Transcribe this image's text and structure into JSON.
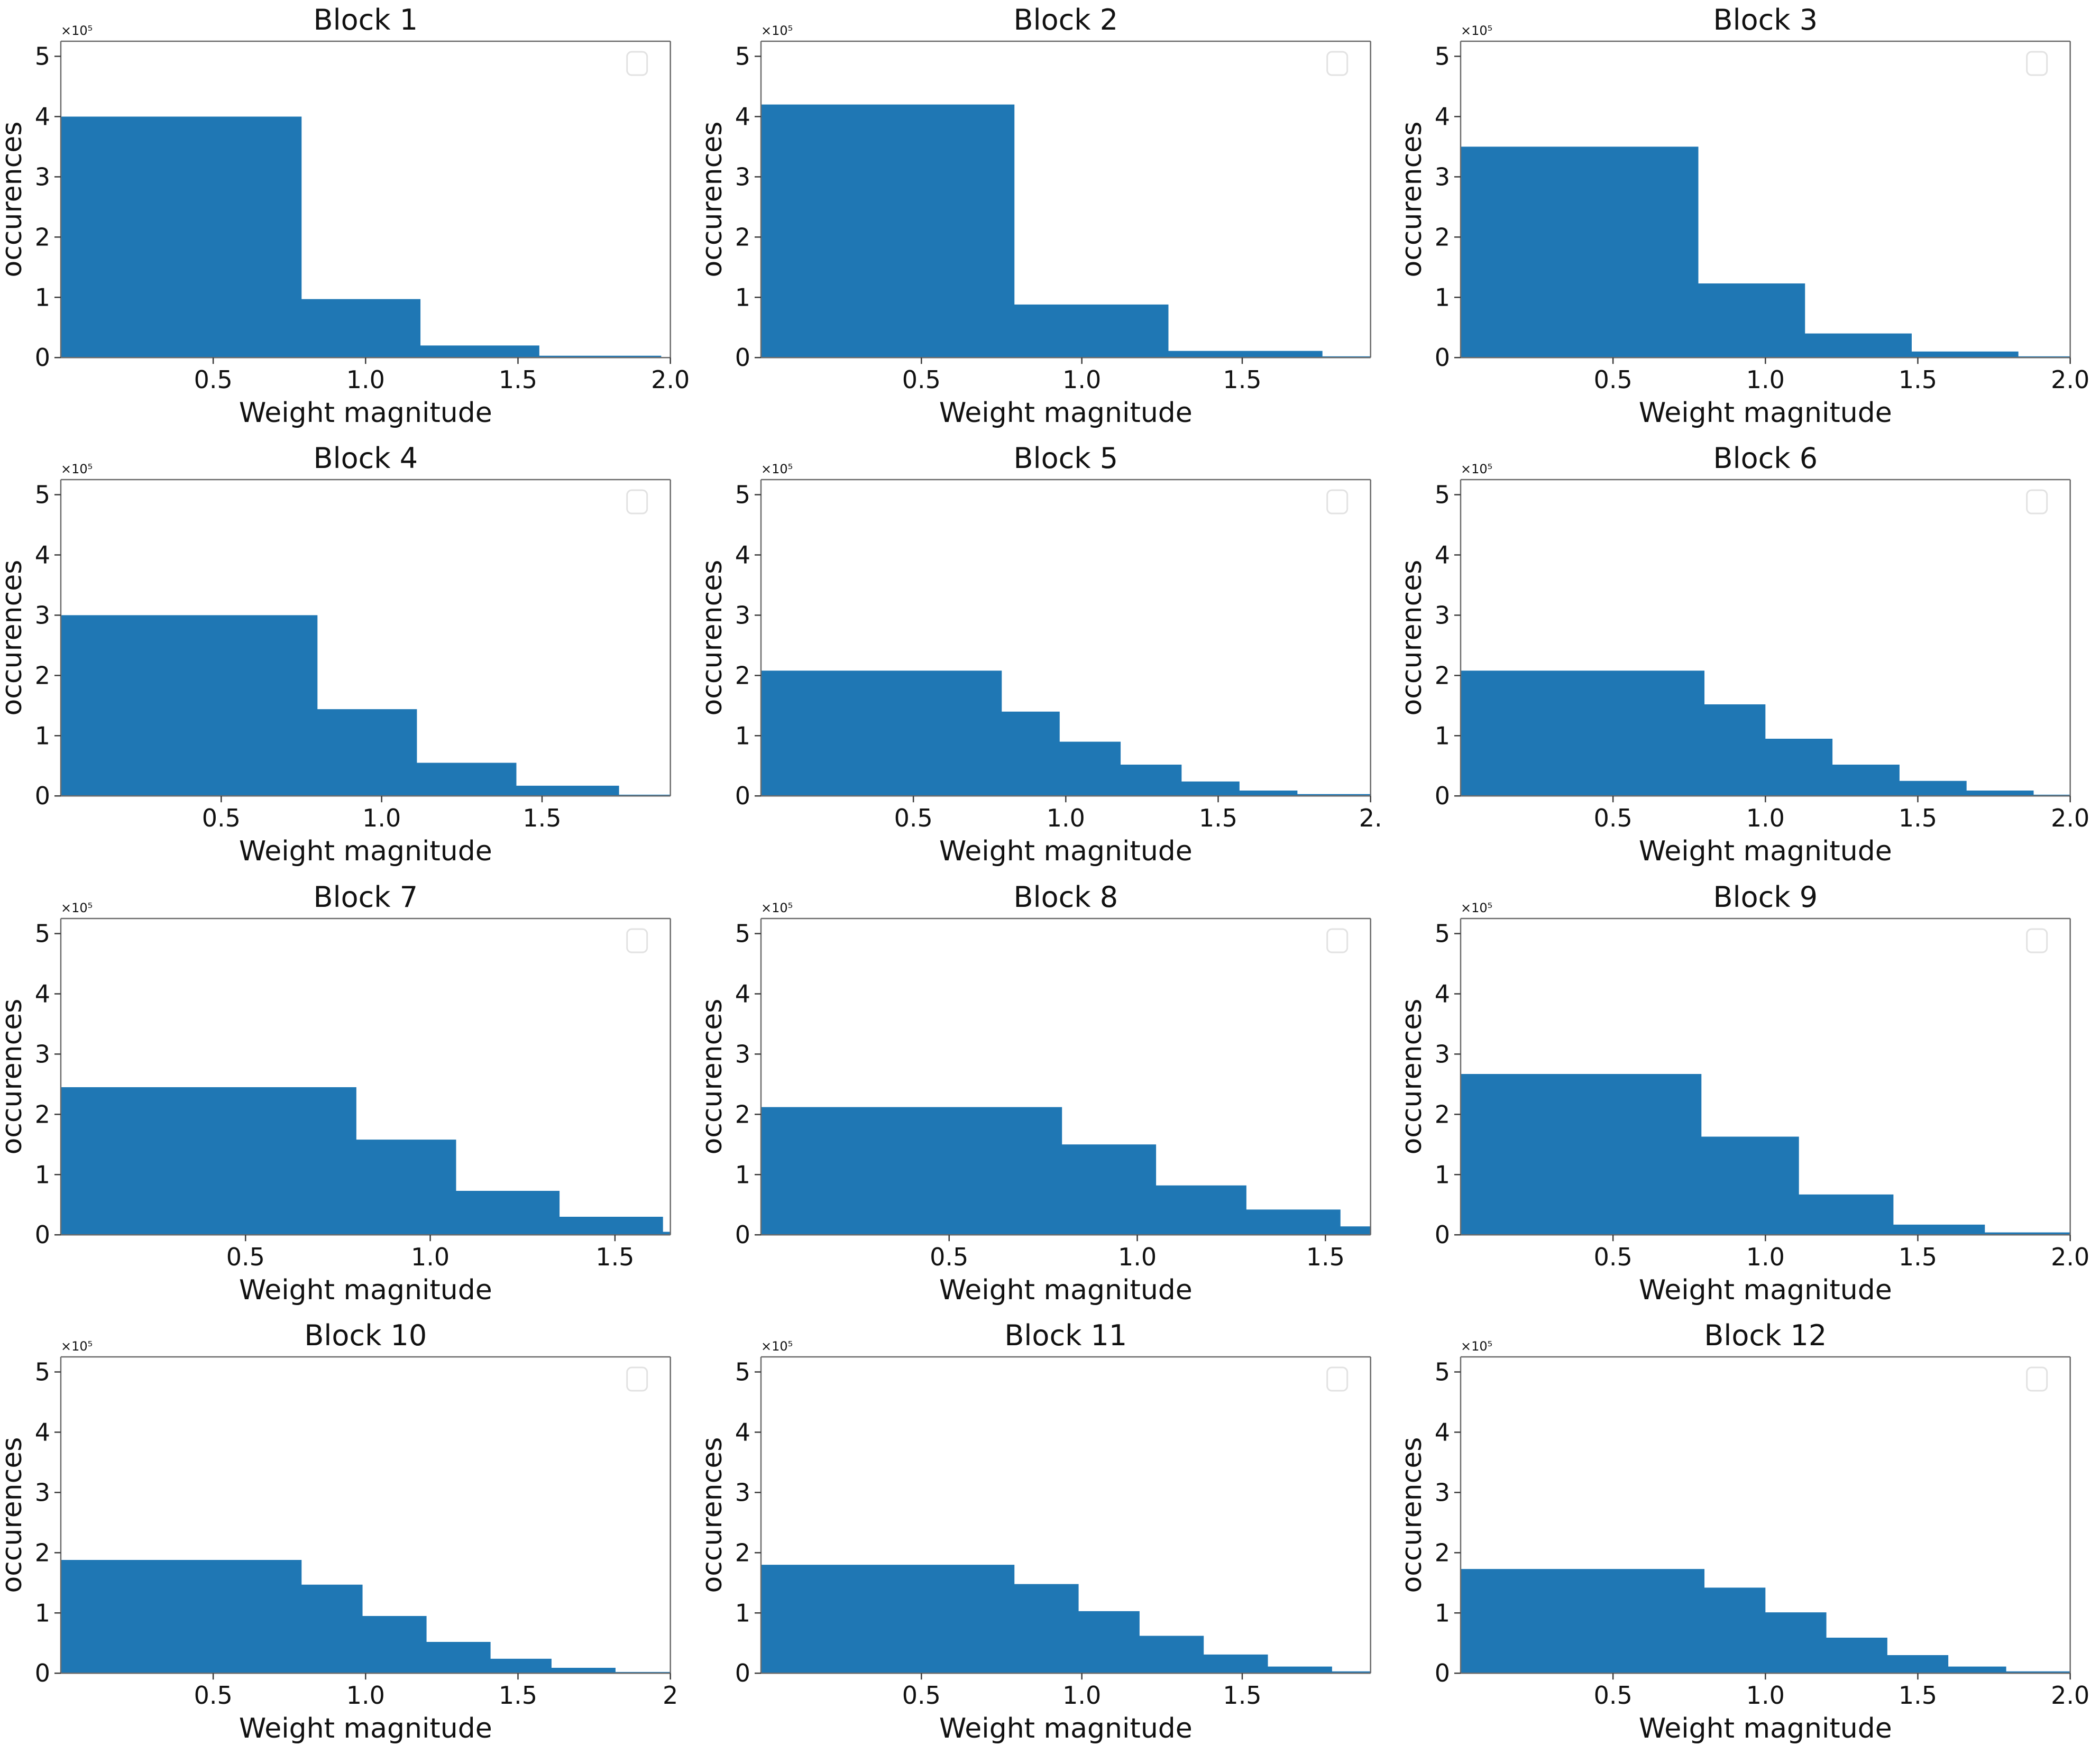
{
  "figure": {
    "background": "#ffffff",
    "bar_color": "#1f77b4",
    "spine_color": "#6b6b6b",
    "tick_color": "#3a3a3a",
    "text_color": "#111111",
    "legend_border_color": "#e2e2e2",
    "offset_text": "×10⁵",
    "ylabel": "occurences",
    "xlabel": "Weight magnitude",
    "yticks": [
      "0",
      "1",
      "2",
      "3",
      "4",
      "5"
    ],
    "ylim": [
      0,
      5.25
    ]
  },
  "chart_data": [
    {
      "type": "bar",
      "title": "Block 1",
      "xlabel": "Weight magnitude",
      "ylabel": "occurences",
      "y_unit": "×10⁵",
      "xlim": [
        0,
        2.0
      ],
      "ylim": [
        0,
        5.25
      ],
      "legend_empty": true,
      "xticks": [
        {
          "x": 0.5,
          "label": "0.5"
        },
        {
          "x": 1.0,
          "label": "1.0"
        },
        {
          "x": 1.5,
          "label": "1.5"
        },
        {
          "x": 2.0,
          "label": "2.0"
        }
      ],
      "bars": [
        {
          "x0": 0.0,
          "x1": 0.79,
          "h": 4.0
        },
        {
          "x0": 0.79,
          "x1": 1.18,
          "h": 0.97
        },
        {
          "x0": 1.18,
          "x1": 1.57,
          "h": 0.2
        },
        {
          "x0": 1.57,
          "x1": 1.97,
          "h": 0.03
        }
      ]
    },
    {
      "type": "bar",
      "title": "Block 2",
      "xlabel": "Weight magnitude",
      "ylabel": "occurences",
      "y_unit": "×10⁵",
      "xlim": [
        0,
        1.9
      ],
      "ylim": [
        0,
        5.25
      ],
      "legend_empty": true,
      "xticks": [
        {
          "x": 0.5,
          "label": "0.5"
        },
        {
          "x": 1.0,
          "label": "1.0"
        },
        {
          "x": 1.5,
          "label": "1.5"
        }
      ],
      "bars": [
        {
          "x0": 0.0,
          "x1": 0.79,
          "h": 4.2
        },
        {
          "x0": 0.79,
          "x1": 1.27,
          "h": 0.88
        },
        {
          "x0": 1.27,
          "x1": 1.75,
          "h": 0.11
        },
        {
          "x0": 1.75,
          "x1": 1.9,
          "h": 0.02
        }
      ]
    },
    {
      "type": "bar",
      "title": "Block 3",
      "xlabel": "Weight magnitude",
      "ylabel": "occurences",
      "y_unit": "×10⁵",
      "xlim": [
        0,
        2.0
      ],
      "ylim": [
        0,
        5.25
      ],
      "legend_empty": true,
      "xticks": [
        {
          "x": 0.5,
          "label": "0.5"
        },
        {
          "x": 1.0,
          "label": "1.0"
        },
        {
          "x": 1.5,
          "label": "1.5"
        },
        {
          "x": 2.0,
          "label": "2.0"
        }
      ],
      "bars": [
        {
          "x0": 0.0,
          "x1": 0.78,
          "h": 3.5
        },
        {
          "x0": 0.78,
          "x1": 1.13,
          "h": 1.23
        },
        {
          "x0": 1.13,
          "x1": 1.48,
          "h": 0.4
        },
        {
          "x0": 1.48,
          "x1": 1.83,
          "h": 0.1
        },
        {
          "x0": 1.83,
          "x1": 2.0,
          "h": 0.02
        }
      ]
    },
    {
      "type": "bar",
      "title": "Block 4",
      "xlabel": "Weight magnitude",
      "ylabel": "occurences",
      "y_unit": "×10⁵",
      "xlim": [
        0,
        1.9
      ],
      "ylim": [
        0,
        5.25
      ],
      "legend_empty": true,
      "xticks": [
        {
          "x": 0.5,
          "label": "0.5"
        },
        {
          "x": 1.0,
          "label": "1.0"
        },
        {
          "x": 1.5,
          "label": "1.5"
        }
      ],
      "bars": [
        {
          "x0": 0.0,
          "x1": 0.8,
          "h": 3.0
        },
        {
          "x0": 0.8,
          "x1": 1.11,
          "h": 1.44
        },
        {
          "x0": 1.11,
          "x1": 1.42,
          "h": 0.55
        },
        {
          "x0": 1.42,
          "x1": 1.74,
          "h": 0.17
        },
        {
          "x0": 1.74,
          "x1": 1.9,
          "h": 0.02
        }
      ]
    },
    {
      "type": "bar",
      "title": "Block 5",
      "xlabel": "Weight magnitude",
      "ylabel": "occurences",
      "y_unit": "×10⁵",
      "xlim": [
        0,
        2.0
      ],
      "ylim": [
        0,
        5.25
      ],
      "legend_empty": true,
      "xticks": [
        {
          "x": 0.5,
          "label": "0.5"
        },
        {
          "x": 1.0,
          "label": "1.0"
        },
        {
          "x": 1.5,
          "label": "1.5"
        },
        {
          "x": 2.0,
          "label": "2."
        }
      ],
      "bars": [
        {
          "x0": 0.0,
          "x1": 0.79,
          "h": 2.08
        },
        {
          "x0": 0.79,
          "x1": 0.98,
          "h": 1.4
        },
        {
          "x0": 0.98,
          "x1": 1.18,
          "h": 0.9
        },
        {
          "x0": 1.18,
          "x1": 1.38,
          "h": 0.52
        },
        {
          "x0": 1.38,
          "x1": 1.57,
          "h": 0.24
        },
        {
          "x0": 1.57,
          "x1": 1.76,
          "h": 0.09
        },
        {
          "x0": 1.76,
          "x1": 2.0,
          "h": 0.03
        }
      ]
    },
    {
      "type": "bar",
      "title": "Block 6",
      "xlabel": "Weight magnitude",
      "ylabel": "occurences",
      "y_unit": "×10⁵",
      "xlim": [
        0,
        2.0
      ],
      "ylim": [
        0,
        5.25
      ],
      "legend_empty": true,
      "xticks": [
        {
          "x": 0.5,
          "label": "0.5"
        },
        {
          "x": 1.0,
          "label": "1.0"
        },
        {
          "x": 1.5,
          "label": "1.5"
        },
        {
          "x": 2.0,
          "label": "2.0"
        }
      ],
      "bars": [
        {
          "x0": 0.0,
          "x1": 0.8,
          "h": 2.08
        },
        {
          "x0": 0.8,
          "x1": 1.0,
          "h": 1.52
        },
        {
          "x0": 1.0,
          "x1": 1.22,
          "h": 0.95
        },
        {
          "x0": 1.22,
          "x1": 1.44,
          "h": 0.52
        },
        {
          "x0": 1.44,
          "x1": 1.66,
          "h": 0.25
        },
        {
          "x0": 1.66,
          "x1": 1.88,
          "h": 0.09
        },
        {
          "x0": 1.88,
          "x1": 2.0,
          "h": 0.02
        }
      ]
    },
    {
      "type": "bar",
      "title": "Block 7",
      "xlabel": "Weight magnitude",
      "ylabel": "occurences",
      "y_unit": "×10⁵",
      "xlim": [
        0,
        1.65
      ],
      "ylim": [
        0,
        5.25
      ],
      "legend_empty": true,
      "xticks": [
        {
          "x": 0.5,
          "label": "0.5"
        },
        {
          "x": 1.0,
          "label": "1.0"
        },
        {
          "x": 1.5,
          "label": "1.5"
        }
      ],
      "bars": [
        {
          "x0": 0.0,
          "x1": 0.8,
          "h": 2.45
        },
        {
          "x0": 0.8,
          "x1": 1.07,
          "h": 1.58
        },
        {
          "x0": 1.07,
          "x1": 1.35,
          "h": 0.73
        },
        {
          "x0": 1.35,
          "x1": 1.63,
          "h": 0.3
        },
        {
          "x0": 1.63,
          "x1": 1.65,
          "h": 0.05
        }
      ]
    },
    {
      "type": "bar",
      "title": "Block 8",
      "xlabel": "Weight magnitude",
      "ylabel": "occurences",
      "y_unit": "×10⁵",
      "xlim": [
        0,
        1.62
      ],
      "ylim": [
        0,
        5.25
      ],
      "legend_empty": true,
      "xticks": [
        {
          "x": 0.5,
          "label": "0.5"
        },
        {
          "x": 1.0,
          "label": "1.0"
        },
        {
          "x": 1.5,
          "label": "1.5"
        }
      ],
      "bars": [
        {
          "x0": 0.0,
          "x1": 0.8,
          "h": 2.12
        },
        {
          "x0": 0.8,
          "x1": 1.05,
          "h": 1.5
        },
        {
          "x0": 1.05,
          "x1": 1.29,
          "h": 0.82
        },
        {
          "x0": 1.29,
          "x1": 1.54,
          "h": 0.42
        },
        {
          "x0": 1.54,
          "x1": 1.62,
          "h": 0.14
        }
      ]
    },
    {
      "type": "bar",
      "title": "Block 9",
      "xlabel": "Weight magnitude",
      "ylabel": "occurences",
      "y_unit": "×10⁵",
      "xlim": [
        0,
        2.0
      ],
      "ylim": [
        0,
        5.25
      ],
      "legend_empty": true,
      "xticks": [
        {
          "x": 0.5,
          "label": "0.5"
        },
        {
          "x": 1.0,
          "label": "1.0"
        },
        {
          "x": 1.5,
          "label": "1.5"
        },
        {
          "x": 2.0,
          "label": "2.0"
        }
      ],
      "bars": [
        {
          "x0": 0.0,
          "x1": 0.79,
          "h": 2.67
        },
        {
          "x0": 0.79,
          "x1": 1.11,
          "h": 1.63
        },
        {
          "x0": 1.11,
          "x1": 1.42,
          "h": 0.67
        },
        {
          "x0": 1.42,
          "x1": 1.72,
          "h": 0.17
        },
        {
          "x0": 1.72,
          "x1": 2.0,
          "h": 0.04
        }
      ]
    },
    {
      "type": "bar",
      "title": "Block 10",
      "xlabel": "Weight magnitude",
      "ylabel": "occurences",
      "y_unit": "×10⁵",
      "xlim": [
        0,
        2.0
      ],
      "ylim": [
        0,
        5.25
      ],
      "legend_empty": true,
      "xticks": [
        {
          "x": 0.5,
          "label": "0.5"
        },
        {
          "x": 1.0,
          "label": "1.0"
        },
        {
          "x": 1.5,
          "label": "1.5"
        },
        {
          "x": 2.0,
          "label": "2"
        }
      ],
      "bars": [
        {
          "x0": 0.0,
          "x1": 0.79,
          "h": 1.88
        },
        {
          "x0": 0.79,
          "x1": 0.99,
          "h": 1.47
        },
        {
          "x0": 0.99,
          "x1": 1.2,
          "h": 0.95
        },
        {
          "x0": 1.2,
          "x1": 1.41,
          "h": 0.52
        },
        {
          "x0": 1.41,
          "x1": 1.61,
          "h": 0.24
        },
        {
          "x0": 1.61,
          "x1": 1.82,
          "h": 0.09
        },
        {
          "x0": 1.82,
          "x1": 2.0,
          "h": 0.02
        }
      ]
    },
    {
      "type": "bar",
      "title": "Block 11",
      "xlabel": "Weight magnitude",
      "ylabel": "occurences",
      "y_unit": "×10⁵",
      "xlim": [
        0,
        1.9
      ],
      "ylim": [
        0,
        5.25
      ],
      "legend_empty": true,
      "xticks": [
        {
          "x": 0.5,
          "label": "0.5"
        },
        {
          "x": 1.0,
          "label": "1.0"
        },
        {
          "x": 1.5,
          "label": "1.5"
        }
      ],
      "bars": [
        {
          "x0": 0.0,
          "x1": 0.79,
          "h": 1.8
        },
        {
          "x0": 0.79,
          "x1": 0.99,
          "h": 1.48
        },
        {
          "x0": 0.99,
          "x1": 1.18,
          "h": 1.03
        },
        {
          "x0": 1.18,
          "x1": 1.38,
          "h": 0.62
        },
        {
          "x0": 1.38,
          "x1": 1.58,
          "h": 0.31
        },
        {
          "x0": 1.58,
          "x1": 1.78,
          "h": 0.11
        },
        {
          "x0": 1.78,
          "x1": 1.9,
          "h": 0.03
        }
      ]
    },
    {
      "type": "bar",
      "title": "Block 12",
      "xlabel": "Weight magnitude",
      "ylabel": "occurences",
      "y_unit": "×10⁵",
      "xlim": [
        0,
        2.0
      ],
      "ylim": [
        0,
        5.25
      ],
      "legend_empty": true,
      "xticks": [
        {
          "x": 0.5,
          "label": "0.5"
        },
        {
          "x": 1.0,
          "label": "1.0"
        },
        {
          "x": 1.5,
          "label": "1.5"
        },
        {
          "x": 2.0,
          "label": "2.0"
        }
      ],
      "bars": [
        {
          "x0": 0.0,
          "x1": 0.8,
          "h": 1.73
        },
        {
          "x0": 0.8,
          "x1": 1.0,
          "h": 1.42
        },
        {
          "x0": 1.0,
          "x1": 1.2,
          "h": 1.01
        },
        {
          "x0": 1.2,
          "x1": 1.4,
          "h": 0.59
        },
        {
          "x0": 1.4,
          "x1": 1.6,
          "h": 0.3
        },
        {
          "x0": 1.6,
          "x1": 1.79,
          "h": 0.11
        },
        {
          "x0": 1.79,
          "x1": 2.0,
          "h": 0.03
        }
      ]
    }
  ]
}
